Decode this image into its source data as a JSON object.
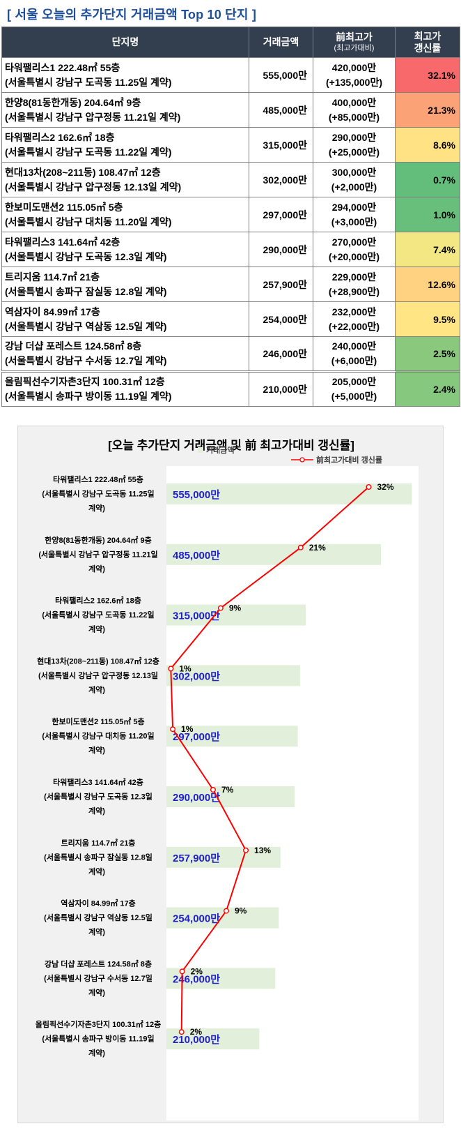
{
  "page_title": "[ 서울 오늘의 추가단지 거래금액 Top 10 단지 ]",
  "table": {
    "headers": {
      "name": "단지명",
      "price": "거래금액",
      "prev_line1": "前최고가",
      "prev_line2": "(최고가대비)",
      "rate_line1": "최고가",
      "rate_line2": "갱신률"
    },
    "rows": [
      {
        "name": "타워팰리스1 222.48㎡ 55층",
        "location": "(서울특별시 강남구 도곡동 11.25일 계약)",
        "price": "555,000만",
        "prev_high": "420,000만",
        "diff": "(+135,000만)",
        "rate": "32.1%",
        "color": "#f8696b"
      },
      {
        "name": "한양8(81동한개동) 204.64㎡ 9층",
        "location": "(서울특별시 강남구 압구정동 11.21일 계약)",
        "price": "485,000만",
        "prev_high": "400,000만",
        "diff": "(+85,000만)",
        "rate": "21.3%",
        "color": "#fba276"
      },
      {
        "name": "타워팰리스2 162.6㎡ 18층",
        "location": "(서울특별시 강남구 도곡동 11.22일 계약)",
        "price": "315,000만",
        "prev_high": "290,000만",
        "diff": "(+25,000만)",
        "rate": "8.6%",
        "color": "#ffe284"
      },
      {
        "name": "현대13차(208~211동) 108.47㎡ 12층",
        "location": "(서울특별시 강남구 압구정동 12.13일 계약)",
        "price": "302,000만",
        "prev_high": "300,000만",
        "diff": "(+2,000만)",
        "rate": "0.7%",
        "color": "#63be7b"
      },
      {
        "name": "한보미도맨션2 115.05㎡ 5층",
        "location": "(서울특별시 강남구 대치동 11.20일 계약)",
        "price": "297,000만",
        "prev_high": "294,000만",
        "diff": "(+3,000만)",
        "rate": "1.0%",
        "color": "#68bf7b"
      },
      {
        "name": "타워팰리스3 141.64㎡ 42층",
        "location": "(서울특별시 강남구 도곡동 12.3일 계약)",
        "price": "290,000만",
        "prev_high": "270,000만",
        "diff": "(+20,000만)",
        "rate": "7.4%",
        "color": "#f2e783"
      },
      {
        "name": "트리지움 114.7㎡ 21층",
        "location": "(서울특별시 송파구 잠실동 12.8일 계약)",
        "price": "257,900만",
        "prev_high": "229,000만",
        "diff": "(+28,900만)",
        "rate": "12.6%",
        "color": "#fed280"
      },
      {
        "name": "역삼자이 84.99㎡ 17층",
        "location": "(서울특별시 강남구 역삼동 12.5일 계약)",
        "price": "254,000만",
        "prev_high": "232,000만",
        "diff": "(+22,000만)",
        "rate": "9.5%",
        "color": "#ffe583"
      },
      {
        "name": "강남 더샵 포레스트 124.58㎡ 8층",
        "location": "(서울특별시 강남구 수서동 12.7일 계약)",
        "price": "246,000만",
        "prev_high": "240,000만",
        "diff": "(+6,000만)",
        "rate": "2.5%",
        "color": "#8ac97d"
      },
      {
        "name": "올림픽선수기자촌3단지 100.31㎡ 12층",
        "location": "(서울특별시 송파구 방이동 11.19일 계약)",
        "price": "210,000만",
        "prev_high": "205,000만",
        "diff": "(+5,000만)",
        "rate": "2.4%",
        "color": "#86c87d"
      }
    ]
  },
  "chart_data": {
    "type": "bar",
    "orientation": "horizontal",
    "title": "[오늘 추가단지 거래금액 및 前 최고가대비 갱신률]",
    "legend_placement": "top-right",
    "grid": false,
    "categories": [
      [
        "타워팰리스1 222.48㎡ 55층",
        "(서울특별시 강남구 도곡동 11.25일",
        "계약)"
      ],
      [
        "한양8(81동한개동) 204.64㎡ 9층",
        "(서울특별시 강남구 압구정동 11.21일",
        "계약)"
      ],
      [
        "타워팰리스2 162.6㎡ 18층",
        "(서울특별시 강남구 도곡동 11.22일",
        "계약)"
      ],
      [
        "현대13차(208~211동) 108.47㎡ 12층",
        "(서울특별시 강남구 압구정동 12.13일",
        "계약)"
      ],
      [
        "한보미도맨션2 115.05㎡ 5층",
        "(서울특별시 강남구 대치동 11.20일",
        "계약)"
      ],
      [
        "타워팰리스3 141.64㎡ 42층",
        "(서울특별시 강남구 도곡동 12.3일",
        "계약)"
      ],
      [
        "트리지움 114.7㎡ 21층",
        "(서울특별시 송파구 잠실동 12.8일",
        "계약)"
      ],
      [
        "역삼자이 84.99㎡ 17층",
        "(서울특별시 강남구 역삼동 12.5일",
        "계약)"
      ],
      [
        "강남 더샵 포레스트 124.58㎡ 8층",
        "(서울특별시 강남구 수서동 12.7일",
        "계약)"
      ],
      [
        "올림픽선수기자촌3단지 100.31㎡ 12층",
        "(서울특별시 송파구 방이동 11.19일",
        "계약)"
      ]
    ],
    "series": [
      {
        "name": "거래금액",
        "kind": "bar",
        "color": "#e2efda",
        "label_color": "#1f1fd0",
        "values": [
          555000,
          485000,
          315000,
          302000,
          297000,
          290000,
          257900,
          254000,
          246000,
          210000
        ],
        "labels": [
          "555,000만",
          "485,000만",
          "315,000만",
          "302,000만",
          "297,000만",
          "290,000만",
          "257,900만",
          "254,000만",
          "246,000만",
          "210,000만"
        ]
      },
      {
        "name": "前최고가대비 갱신률",
        "kind": "line",
        "color": "#ff0000",
        "values": [
          32.1,
          21.3,
          8.6,
          0.7,
          1.0,
          7.4,
          12.6,
          9.5,
          2.5,
          2.4
        ],
        "labels": [
          "32%",
          "21%",
          "9%",
          "1%",
          "1%",
          "7%",
          "13%",
          "9%",
          "2%",
          "2%"
        ]
      }
    ],
    "bar_range": [
      0,
      570000
    ],
    "line_range": [
      0,
      40
    ]
  }
}
